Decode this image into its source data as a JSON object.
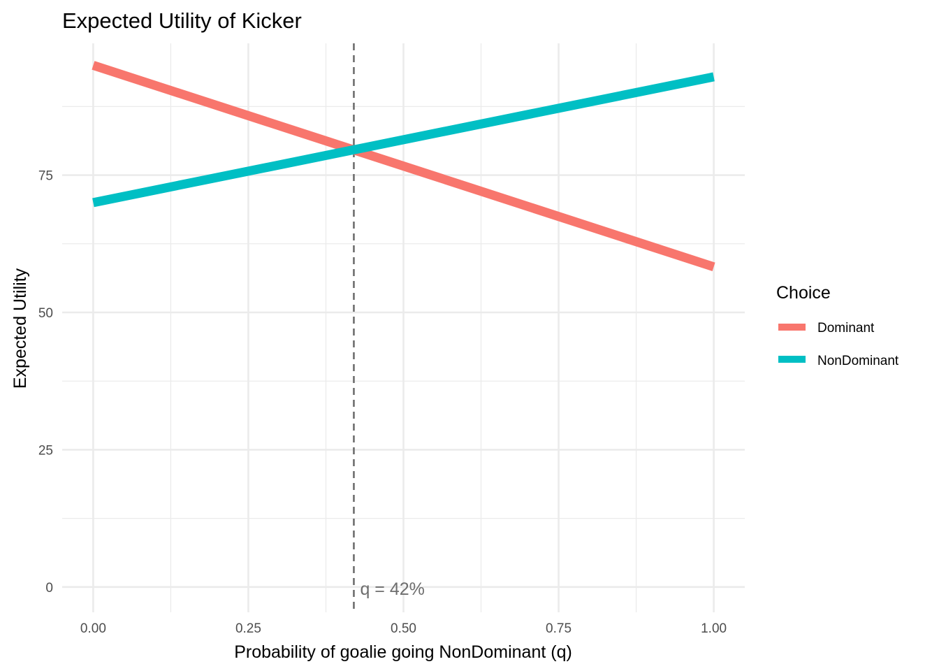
{
  "chart_data": {
    "type": "line",
    "title": "Expected Utility of Kicker",
    "xlabel": "Probability of goalie going NonDominant (q)",
    "ylabel": "Expected Utility",
    "xlim": [
      -0.05,
      1.05
    ],
    "ylim": [
      -4.6,
      99
    ],
    "x_ticks": [
      0,
      0.25,
      0.5,
      0.75,
      1
    ],
    "x_tick_labels": [
      "0.00",
      "0.25",
      "0.50",
      "0.75",
      "1.00"
    ],
    "y_ticks": [
      0,
      25,
      50,
      75
    ],
    "y_tick_labels": [
      "0",
      "25",
      "50",
      "75"
    ],
    "x_minor": [
      0.125,
      0.375,
      0.625,
      0.875
    ],
    "y_minor": [
      12.5,
      37.5,
      62.5,
      87.5
    ],
    "grid": true,
    "legend": {
      "title": "Choice",
      "position": "right"
    },
    "series": [
      {
        "name": "Dominant",
        "color": "#F8766D",
        "x": [
          0,
          1
        ],
        "y": [
          95,
          58.3
        ]
      },
      {
        "name": "NonDominant",
        "color": "#00BFC4",
        "x": [
          0,
          1
        ],
        "y": [
          70,
          92.9
        ]
      }
    ],
    "vline": {
      "x": 0.42,
      "color": "#6e6e6e",
      "label": "q = 42%"
    }
  }
}
